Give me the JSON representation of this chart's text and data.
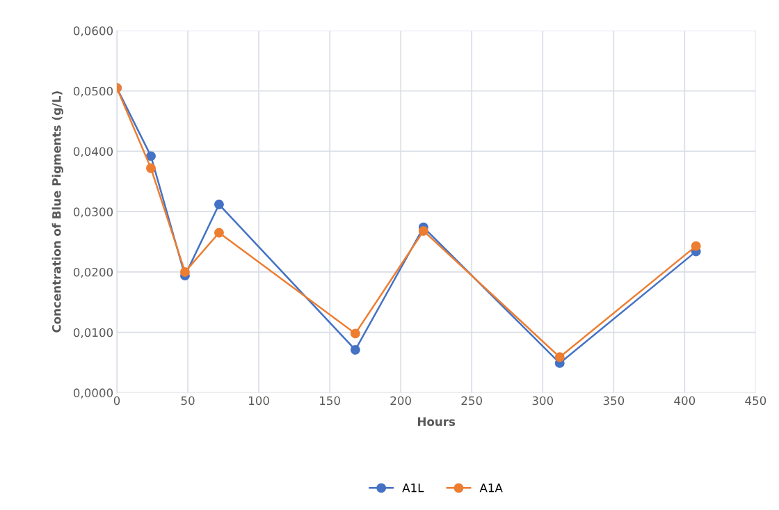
{
  "chart_data": {
    "type": "line",
    "xlabel": "Hours",
    "ylabel": "Concentration of Blue Pigments (g/L)",
    "x": [
      0,
      24,
      48,
      72,
      168,
      216,
      312,
      408
    ],
    "series": [
      {
        "name": "A1L",
        "color": "#4472c4",
        "values": [
          0.0505,
          0.0392,
          0.0194,
          0.0312,
          0.0071,
          0.0274,
          0.0049,
          0.0234
        ]
      },
      {
        "name": "A1A",
        "color": "#ed7d31",
        "values": [
          0.0505,
          0.0372,
          0.02,
          0.0265,
          0.0098,
          0.0268,
          0.0059,
          0.0243
        ]
      }
    ],
    "xlim": [
      0,
      450
    ],
    "xticks": [
      0,
      50,
      100,
      150,
      200,
      250,
      300,
      350,
      400,
      450
    ],
    "ylim": [
      0,
      0.06
    ],
    "yticks": [
      {
        "value": 0,
        "label": "0,0000"
      },
      {
        "value": 0.01,
        "label": "0,0100"
      },
      {
        "value": 0.02,
        "label": "0,0200"
      },
      {
        "value": 0.03,
        "label": "0,0300"
      },
      {
        "value": 0.04,
        "label": "0,0400"
      },
      {
        "value": 0.05,
        "label": "0,0500"
      },
      {
        "value": 0.06,
        "label": "0,0600"
      }
    ],
    "grid": true,
    "legend": "bottom",
    "marker": "circle",
    "line_style": "solid"
  }
}
